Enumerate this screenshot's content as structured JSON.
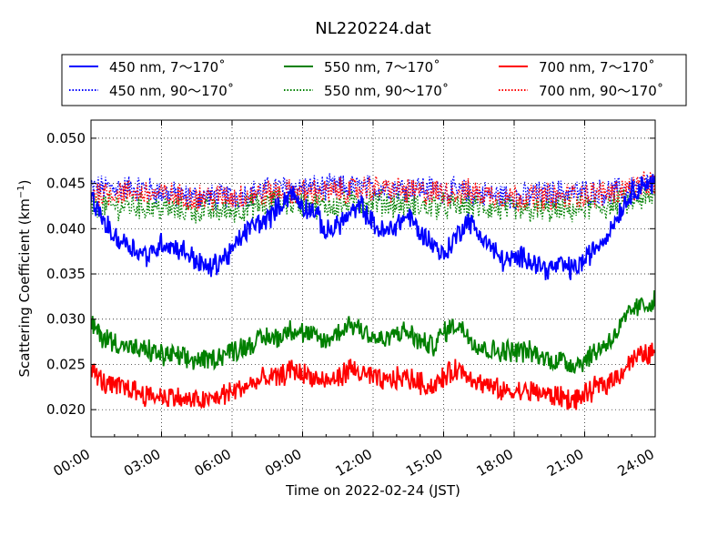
{
  "chart_data": {
    "type": "line",
    "title": "NL220224.dat",
    "xlabel": "Time on 2022-02-24 (JST)",
    "ylabel_main": "Scattering Coefficient (km",
    "ylabel_sup": "−1",
    "ylabel_end": ")",
    "xlim": [
      0,
      24
    ],
    "ylim": [
      0.017,
      0.052
    ],
    "x_ticks": [
      {
        "value": 0,
        "label": "00:00"
      },
      {
        "value": 3,
        "label": "03:00"
      },
      {
        "value": 6,
        "label": "06:00"
      },
      {
        "value": 9,
        "label": "09:00"
      },
      {
        "value": 12,
        "label": "12:00"
      },
      {
        "value": 15,
        "label": "15:00"
      },
      {
        "value": 18,
        "label": "18:00"
      },
      {
        "value": 21,
        "label": "21:00"
      },
      {
        "value": 24,
        "label": "24:00"
      }
    ],
    "y_ticks": [
      {
        "value": 0.02,
        "label": "0.020"
      },
      {
        "value": 0.025,
        "label": "0.025"
      },
      {
        "value": 0.03,
        "label": "0.030"
      },
      {
        "value": 0.035,
        "label": "0.035"
      },
      {
        "value": 0.04,
        "label": "0.040"
      },
      {
        "value": 0.045,
        "label": "0.045"
      },
      {
        "value": 0.05,
        "label": "0.050"
      }
    ],
    "grid": true,
    "legend_position": "top, above plot",
    "series": [
      {
        "name": "450 nm, 7～170˚",
        "color": "#0000ff",
        "style": "solid",
        "x": [
          0,
          0.5,
          1,
          1.5,
          2,
          2.5,
          3,
          3.5,
          4,
          4.5,
          5,
          5.5,
          6,
          6.5,
          7,
          7.5,
          8,
          8.5,
          9,
          9.5,
          10,
          10.5,
          11,
          11.5,
          12,
          12.5,
          13,
          13.5,
          14,
          14.5,
          15,
          15.5,
          16,
          16.5,
          17,
          17.5,
          18,
          18.5,
          19,
          19.5,
          20,
          20.5,
          21,
          21.5,
          22,
          22.5,
          23,
          23.5,
          24
        ],
        "values": [
          0.0435,
          0.041,
          0.039,
          0.0385,
          0.0375,
          0.037,
          0.0385,
          0.038,
          0.0375,
          0.0365,
          0.0355,
          0.0365,
          0.0375,
          0.0395,
          0.0405,
          0.041,
          0.0425,
          0.044,
          0.0425,
          0.042,
          0.0395,
          0.0405,
          0.0415,
          0.0425,
          0.0405,
          0.0395,
          0.0405,
          0.0415,
          0.0395,
          0.0385,
          0.037,
          0.039,
          0.041,
          0.0395,
          0.038,
          0.0365,
          0.0365,
          0.037,
          0.036,
          0.0355,
          0.036,
          0.0355,
          0.0365,
          0.038,
          0.0395,
          0.042,
          0.044,
          0.045,
          0.045
        ]
      },
      {
        "name": "450 nm, 90～170˚",
        "color": "#0000ff",
        "style": "dotted",
        "x": [
          0,
          2,
          4,
          6,
          8,
          10,
          12,
          14,
          16,
          18,
          20,
          22,
          24
        ],
        "values": [
          0.0445,
          0.0445,
          0.0435,
          0.0435,
          0.0445,
          0.0445,
          0.0445,
          0.0445,
          0.044,
          0.0435,
          0.044,
          0.044,
          0.045
        ]
      },
      {
        "name": "550 nm, 7～170˚",
        "color": "#008000",
        "style": "solid",
        "x": [
          0,
          0.5,
          1,
          1.5,
          2,
          2.5,
          3,
          3.5,
          4,
          4.5,
          5,
          5.5,
          6,
          6.5,
          7,
          7.5,
          8,
          8.5,
          9,
          9.5,
          10,
          10.5,
          11,
          11.5,
          12,
          12.5,
          13,
          13.5,
          14,
          14.5,
          15,
          15.5,
          16,
          16.5,
          17,
          17.5,
          18,
          18.5,
          19,
          19.5,
          20,
          20.5,
          21,
          21.5,
          22,
          22.5,
          23,
          23.5,
          24
        ],
        "values": [
          0.0295,
          0.028,
          0.0275,
          0.027,
          0.0265,
          0.0265,
          0.026,
          0.026,
          0.0255,
          0.0255,
          0.0255,
          0.026,
          0.0265,
          0.027,
          0.0275,
          0.028,
          0.028,
          0.029,
          0.0285,
          0.028,
          0.0275,
          0.0285,
          0.0295,
          0.029,
          0.028,
          0.0275,
          0.0285,
          0.0285,
          0.0275,
          0.027,
          0.0285,
          0.0295,
          0.0285,
          0.027,
          0.0265,
          0.0265,
          0.0265,
          0.0265,
          0.026,
          0.0255,
          0.0255,
          0.025,
          0.0255,
          0.0265,
          0.0275,
          0.029,
          0.031,
          0.0315,
          0.032
        ]
      },
      {
        "name": "550 nm, 90～170˚",
        "color": "#008000",
        "style": "dotted",
        "x": [
          0,
          2,
          4,
          6,
          8,
          10,
          12,
          14,
          16,
          18,
          20,
          22,
          24
        ],
        "values": [
          0.0425,
          0.0425,
          0.042,
          0.042,
          0.043,
          0.0425,
          0.043,
          0.0425,
          0.0425,
          0.042,
          0.042,
          0.0425,
          0.0435
        ]
      },
      {
        "name": "700 nm, 7～170˚",
        "color": "#ff0000",
        "style": "solid",
        "x": [
          0,
          0.5,
          1,
          1.5,
          2,
          2.5,
          3,
          3.5,
          4,
          4.5,
          5,
          5.5,
          6,
          6.5,
          7,
          7.5,
          8,
          8.5,
          9,
          9.5,
          10,
          10.5,
          11,
          11.5,
          12,
          12.5,
          13,
          13.5,
          14,
          14.5,
          15,
          15.5,
          16,
          16.5,
          17,
          17.5,
          18,
          18.5,
          19,
          19.5,
          20,
          20.5,
          21,
          21.5,
          22,
          22.5,
          23,
          23.5,
          24
        ],
        "values": [
          0.0245,
          0.023,
          0.0225,
          0.0225,
          0.022,
          0.0215,
          0.0215,
          0.0215,
          0.021,
          0.021,
          0.021,
          0.0215,
          0.022,
          0.0225,
          0.023,
          0.0235,
          0.0235,
          0.0245,
          0.024,
          0.0235,
          0.023,
          0.0235,
          0.0245,
          0.024,
          0.0235,
          0.023,
          0.0235,
          0.0235,
          0.023,
          0.0225,
          0.0235,
          0.0245,
          0.024,
          0.023,
          0.0225,
          0.022,
          0.022,
          0.022,
          0.022,
          0.0215,
          0.0215,
          0.021,
          0.0215,
          0.0225,
          0.023,
          0.024,
          0.0255,
          0.026,
          0.0265
        ]
      },
      {
        "name": "700 nm, 90～170˚",
        "color": "#ff0000",
        "style": "dotted",
        "x": [
          0,
          2,
          4,
          6,
          8,
          10,
          12,
          14,
          16,
          18,
          20,
          22,
          24
        ],
        "values": [
          0.044,
          0.044,
          0.0435,
          0.0435,
          0.044,
          0.044,
          0.0445,
          0.044,
          0.044,
          0.0435,
          0.0435,
          0.044,
          0.045
        ]
      }
    ]
  }
}
